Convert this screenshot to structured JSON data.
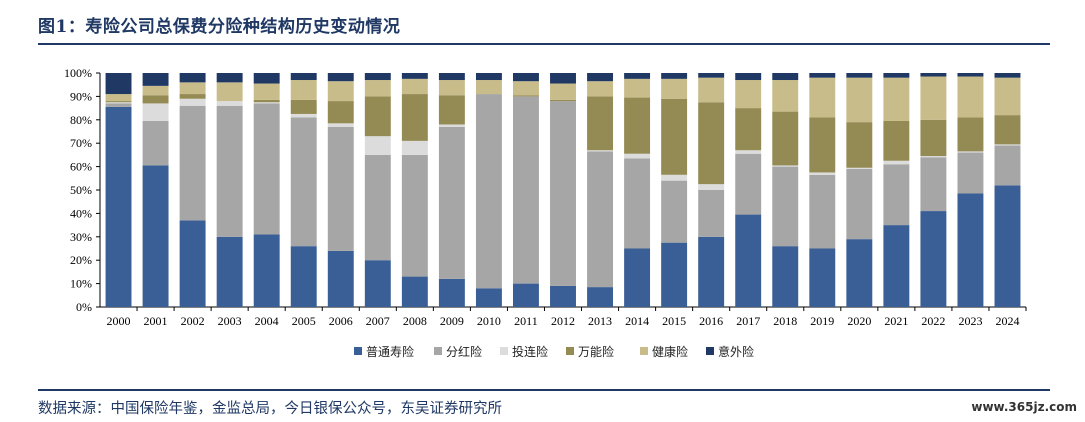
{
  "header": {
    "title": "图1：寿险公司总保费分险种结构历史变动情况"
  },
  "footer": {
    "source": "数据来源：中国保险年鉴，金监总局，今日银保公众号，东吴证券研究所",
    "watermark": "www.365jz.com"
  },
  "chart_data": {
    "type": "bar",
    "stacked": true,
    "title": "",
    "xlabel": "",
    "ylabel": "",
    "ylim": [
      0,
      100
    ],
    "yticks": [
      "0%",
      "10%",
      "20%",
      "30%",
      "40%",
      "50%",
      "60%",
      "70%",
      "80%",
      "90%",
      "100%"
    ],
    "legend_position": "bottom",
    "grid": false,
    "categories": [
      "2000",
      "2001",
      "2002",
      "2003",
      "2004",
      "2005",
      "2006",
      "2007",
      "2008",
      "2009",
      "2010",
      "2011",
      "2012",
      "2013",
      "2014",
      "2015",
      "2016",
      "2017",
      "2018",
      "2019",
      "2020",
      "2021",
      "2022",
      "2023",
      "2024"
    ],
    "series": [
      {
        "name": "普通寿险",
        "color": "#3a5f96",
        "values": [
          85.5,
          60.5,
          37,
          30,
          31,
          26,
          24,
          20,
          13,
          12,
          8,
          10,
          9,
          8.5,
          25,
          27.5,
          30,
          39.5,
          26,
          25,
          29,
          35,
          41,
          48.5,
          52
        ]
      },
      {
        "name": "分红险",
        "color": "#a6a6a6",
        "values": [
          1.5,
          19,
          49,
          56,
          56,
          55,
          53,
          45,
          52,
          65,
          83,
          80,
          79,
          58,
          38.5,
          26.5,
          20,
          26,
          34,
          31.5,
          30,
          26,
          23,
          17.5,
          17
        ]
      },
      {
        "name": "投连险",
        "color": "#dcdcdc",
        "values": [
          0.5,
          7.5,
          3,
          2,
          0.5,
          1.5,
          1.5,
          8,
          6,
          1,
          0,
          0,
          0,
          0.5,
          2,
          2.5,
          2.5,
          1.5,
          0.5,
          1,
          0.5,
          1.5,
          0.5,
          0.5,
          0.5
        ]
      },
      {
        "name": "万能险",
        "color": "#948a54",
        "values": [
          0.5,
          3.5,
          2,
          0,
          1,
          6,
          9.5,
          17,
          20,
          12.5,
          0,
          0.5,
          0.5,
          23,
          24,
          32.5,
          35,
          18,
          23,
          23.5,
          19.5,
          17,
          15.5,
          14.5,
          12.5
        ]
      },
      {
        "name": "健康险",
        "color": "#c8bc8a",
        "values": [
          3,
          4,
          5,
          8,
          7,
          8.5,
          8.5,
          7,
          6.5,
          6.5,
          6,
          6,
          7,
          6.5,
          8,
          8.5,
          10.5,
          12,
          13.5,
          17,
          19,
          18.5,
          18.5,
          17.5,
          16
        ]
      },
      {
        "name": "意外险",
        "color": "#1f3864",
        "values": [
          9,
          5.5,
          4,
          4,
          4.5,
          3,
          3.5,
          3,
          2.5,
          3,
          3,
          3.5,
          4.5,
          3.5,
          2.5,
          2.5,
          2,
          3,
          3,
          2,
          2,
          2,
          1.5,
          1.5,
          2
        ]
      }
    ]
  }
}
